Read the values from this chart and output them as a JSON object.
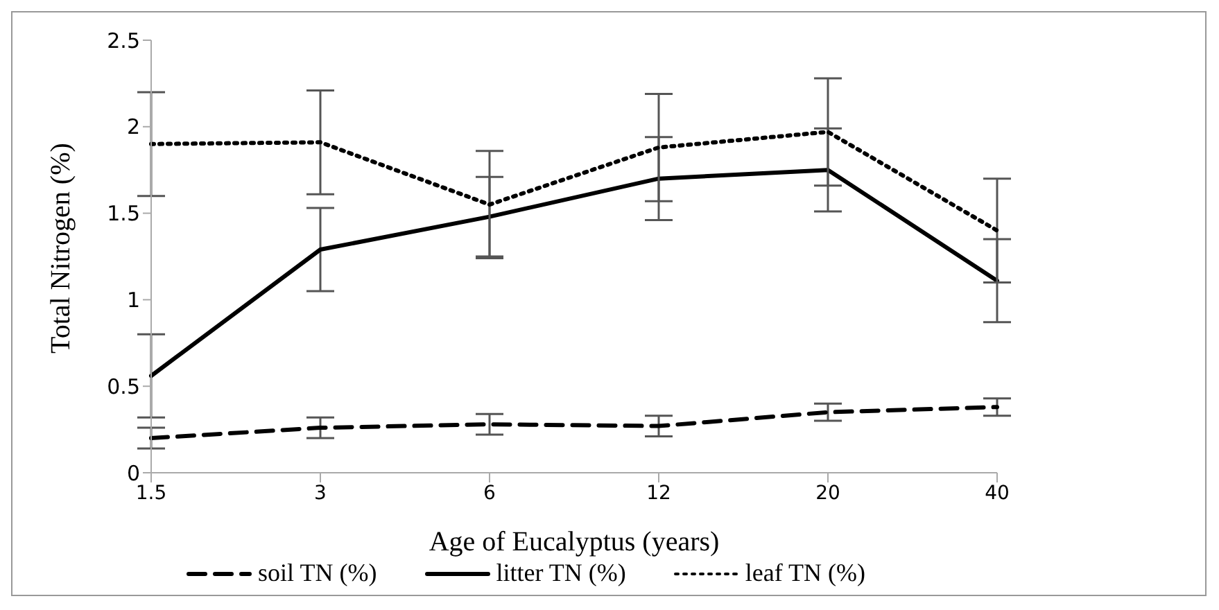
{
  "chart_data": {
    "type": "line",
    "xlabel": "Age of Eucalyptus (years)",
    "ylabel": "Total Nitrogen (%)",
    "categories": [
      "1.5",
      "3",
      "6",
      "12",
      "20",
      "40"
    ],
    "series": [
      {
        "name": "soil TN (%)",
        "color": "#000000",
        "line_style": "dashed",
        "values": [
          0.2,
          0.26,
          0.28,
          0.27,
          0.35,
          0.38
        ],
        "errors": [
          0.06,
          0.06,
          0.06,
          0.06,
          0.05,
          0.05
        ]
      },
      {
        "name": "litter TN (%)",
        "color": "#000000",
        "line_style": "solid",
        "values": [
          0.56,
          1.29,
          1.48,
          1.7,
          1.75,
          1.11
        ],
        "errors": [
          0.24,
          0.24,
          0.23,
          0.24,
          0.24,
          0.24
        ]
      },
      {
        "name": "leaf TN (%)",
        "color": "#000000",
        "line_style": "dotted",
        "values": [
          1.9,
          1.91,
          1.55,
          1.88,
          1.97,
          1.4
        ],
        "errors": [
          0.3,
          0.3,
          0.31,
          0.31,
          0.31,
          0.3
        ]
      }
    ],
    "ylim": [
      0,
      2.5
    ],
    "yticks": [
      0,
      0.5,
      1,
      1.5,
      2,
      2.5
    ],
    "grid": false,
    "legend": "bottom",
    "marker": "none"
  }
}
